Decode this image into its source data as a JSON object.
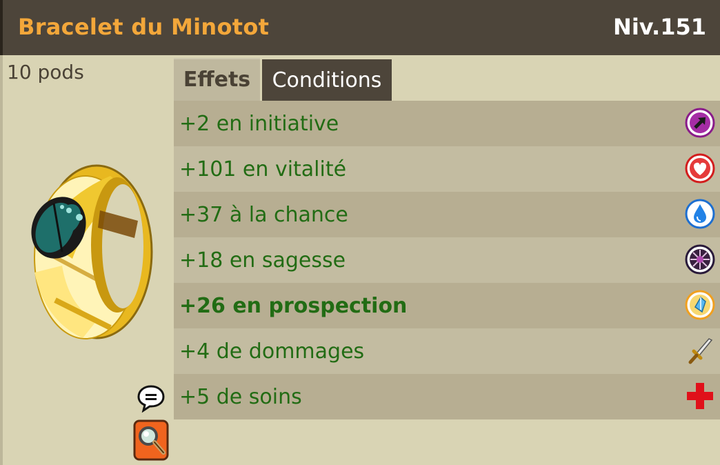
{
  "header": {
    "item_name": "Bracelet du Minotot",
    "item_level": "Niv.151"
  },
  "item": {
    "weight": "10 pods"
  },
  "tabs": [
    {
      "label": "Effets",
      "active": true
    },
    {
      "label": "Conditions",
      "active": false
    }
  ],
  "effects": [
    {
      "text": "+2 en initiative",
      "icon": "initiative-icon",
      "bold": false
    },
    {
      "text": "+101 en vitalité",
      "icon": "vitality-heart-icon",
      "bold": false
    },
    {
      "text": "+37 à la chance",
      "icon": "chance-water-drop-icon",
      "bold": false
    },
    {
      "text": "+18 en sagesse",
      "icon": "wisdom-icon",
      "bold": false
    },
    {
      "text": "+26 en prospection",
      "icon": "prospecting-crystal-icon",
      "bold": true
    },
    {
      "text": "+4 de dommages",
      "icon": "damage-sword-icon",
      "bold": false
    },
    {
      "text": "+5 de soins",
      "icon": "heals-cross-icon",
      "bold": false
    }
  ],
  "colors": {
    "header_bg": "#4d453a",
    "item_name": "#f3a73a",
    "effect_text": "#226c14",
    "panel_bg": "#d9d4b4"
  }
}
